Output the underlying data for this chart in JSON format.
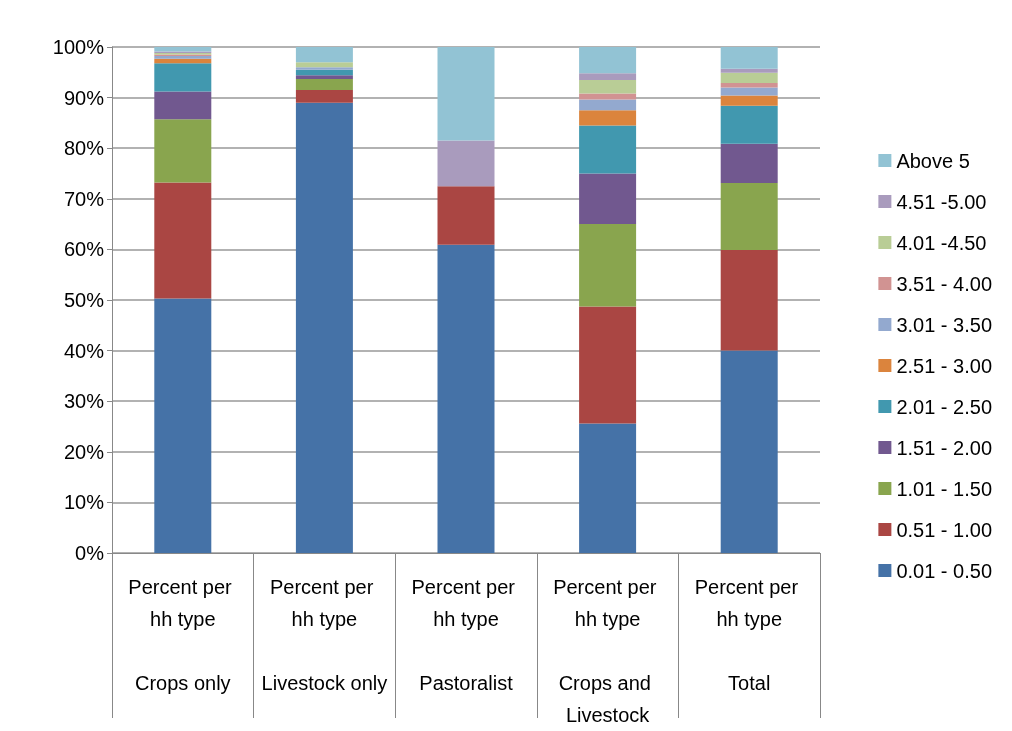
{
  "chart_data": {
    "type": "bar",
    "stacked": true,
    "categories": [
      "Percent per hh type\nCrops only",
      "Percent per hh type\nLivestock only",
      "Percent per hh type\nPastoralist",
      "Percent per hh type\nCrops and Livestock",
      "Percent per hh type\nTotal"
    ],
    "series": [
      {
        "name": "0.01 - 0.50",
        "color": "#4572a7",
        "values": [
          50.3,
          89.0,
          60.9,
          25.6,
          40.0
        ]
      },
      {
        "name": "0.51 - 1.00",
        "color": "#aa4643",
        "values": [
          22.9,
          2.5,
          11.6,
          23.1,
          19.9
        ]
      },
      {
        "name": "1.01 - 1.50",
        "color": "#89a54e",
        "values": [
          12.5,
          2.2,
          0,
          16.3,
          13.2
        ]
      },
      {
        "name": "1.51 - 2.00",
        "color": "#71588f",
        "values": [
          5.5,
          0.7,
          0,
          10.0,
          7.8
        ]
      },
      {
        "name": "2.01 - 2.50",
        "color": "#4198af",
        "values": [
          5.6,
          1.1,
          0,
          9.5,
          7.5
        ]
      },
      {
        "name": "2.51 - 3.00",
        "color": "#db843d",
        "values": [
          0.9,
          0,
          0,
          3.0,
          2.0
        ]
      },
      {
        "name": "3.01 - 3.50",
        "color": "#93a9cf",
        "values": [
          0.5,
          0.5,
          0,
          2.1,
          1.6
        ]
      },
      {
        "name": "3.51 - 4.00",
        "color": "#d19392",
        "values": [
          0.3,
          0,
          0,
          1.2,
          0.9
        ]
      },
      {
        "name": "4.01 -4.50",
        "color": "#b9cd96",
        "values": [
          0.3,
          1.0,
          0,
          2.7,
          2.0
        ]
      },
      {
        "name": "4.51 -5.00",
        "color": "#a99bbd",
        "values": [
          0.3,
          0,
          9.0,
          1.3,
          0.8
        ]
      },
      {
        "name": "Above 5",
        "color": "#92c3d4",
        "values": [
          0.9,
          3.0,
          18.5,
          5.2,
          4.3
        ]
      }
    ],
    "ylim": [
      0,
      100
    ],
    "yticks": [
      {
        "value": 0,
        "label": "0%"
      },
      {
        "value": 10,
        "label": "10%"
      },
      {
        "value": 20,
        "label": "20%"
      },
      {
        "value": 30,
        "label": "30%"
      },
      {
        "value": 40,
        "label": "40%"
      },
      {
        "value": 50,
        "label": "50%"
      },
      {
        "value": 60,
        "label": "60%"
      },
      {
        "value": 70,
        "label": "70%"
      },
      {
        "value": 80,
        "label": "80%"
      },
      {
        "value": 90,
        "label": "90%"
      },
      {
        "value": 100,
        "label": "100%"
      }
    ],
    "grid": true,
    "legend": "right"
  }
}
